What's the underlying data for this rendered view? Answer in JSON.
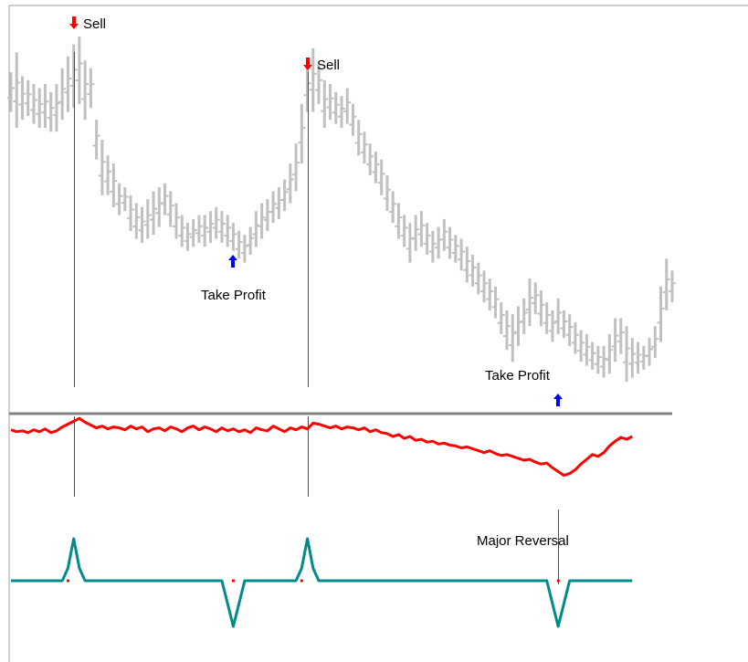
{
  "chart_data": [
    {
      "type": "ohlc",
      "panel": "price",
      "series_color": "#c0c0c0",
      "bars": [
        {
          "low": 68,
          "high": 78
        },
        {
          "low": 64,
          "high": 83
        },
        {
          "low": 66,
          "high": 77
        },
        {
          "low": 67,
          "high": 76
        },
        {
          "low": 65,
          "high": 75
        },
        {
          "low": 64,
          "high": 74
        },
        {
          "low": 64,
          "high": 75
        },
        {
          "low": 63,
          "high": 73
        },
        {
          "low": 63,
          "high": 75
        },
        {
          "low": 66,
          "high": 79
        },
        {
          "low": 68,
          "high": 82
        },
        {
          "low": 69,
          "high": 85
        },
        {
          "low": 70,
          "high": 87
        },
        {
          "low": 66,
          "high": 81
        },
        {
          "low": 69,
          "high": 79
        },
        {
          "low": 56,
          "high": 66
        },
        {
          "low": 47,
          "high": 61
        },
        {
          "low": 47,
          "high": 57
        },
        {
          "low": 44,
          "high": 55
        },
        {
          "low": 42,
          "high": 50
        },
        {
          "low": 43,
          "high": 49
        },
        {
          "low": 38,
          "high": 47
        },
        {
          "low": 36,
          "high": 45
        },
        {
          "low": 35,
          "high": 44
        },
        {
          "low": 36,
          "high": 46
        },
        {
          "low": 37,
          "high": 48
        },
        {
          "low": 39,
          "high": 49
        },
        {
          "low": 42,
          "high": 50
        },
        {
          "low": 39,
          "high": 48
        },
        {
          "low": 36,
          "high": 45
        },
        {
          "low": 34,
          "high": 42
        },
        {
          "low": 33,
          "high": 40
        },
        {
          "low": 34,
          "high": 41
        },
        {
          "low": 35,
          "high": 42
        },
        {
          "low": 34,
          "high": 42
        },
        {
          "low": 35,
          "high": 43
        },
        {
          "low": 36,
          "high": 44
        },
        {
          "low": 35,
          "high": 43
        },
        {
          "low": 34,
          "high": 42
        },
        {
          "low": 33,
          "high": 40
        },
        {
          "low": 31,
          "high": 38
        },
        {
          "low": 30,
          "high": 37
        },
        {
          "low": 32,
          "high": 39
        },
        {
          "low": 34,
          "high": 43
        },
        {
          "low": 36,
          "high": 45
        },
        {
          "low": 38,
          "high": 46
        },
        {
          "low": 40,
          "high": 48
        },
        {
          "low": 41,
          "high": 49
        },
        {
          "low": 43,
          "high": 51
        },
        {
          "low": 45,
          "high": 55
        },
        {
          "low": 48,
          "high": 60
        },
        {
          "low": 55,
          "high": 70
        },
        {
          "low": 68,
          "high": 80
        },
        {
          "low": 68,
          "high": 84
        },
        {
          "low": 70,
          "high": 80
        },
        {
          "low": 64,
          "high": 76
        },
        {
          "low": 66,
          "high": 75
        },
        {
          "low": 65,
          "high": 73
        },
        {
          "low": 64,
          "high": 72
        },
        {
          "low": 65,
          "high": 74
        },
        {
          "low": 62,
          "high": 70
        },
        {
          "low": 57,
          "high": 66
        },
        {
          "low": 55,
          "high": 63
        },
        {
          "low": 52,
          "high": 60
        },
        {
          "low": 50,
          "high": 58
        },
        {
          "low": 47,
          "high": 56
        },
        {
          "low": 43,
          "high": 52
        },
        {
          "low": 40,
          "high": 48
        },
        {
          "low": 36,
          "high": 45
        },
        {
          "low": 34,
          "high": 42
        },
        {
          "low": 30,
          "high": 40
        },
        {
          "low": 33,
          "high": 42
        },
        {
          "low": 34,
          "high": 43
        },
        {
          "low": 32,
          "high": 40
        },
        {
          "low": 30,
          "high": 38
        },
        {
          "low": 31,
          "high": 39
        },
        {
          "low": 33,
          "high": 41
        },
        {
          "low": 31,
          "high": 39
        },
        {
          "low": 30,
          "high": 37
        },
        {
          "low": 28,
          "high": 36
        },
        {
          "low": 25,
          "high": 34
        },
        {
          "low": 24,
          "high": 32
        },
        {
          "low": 22,
          "high": 30
        },
        {
          "low": 20,
          "high": 28
        },
        {
          "low": 18,
          "high": 26
        },
        {
          "low": 16,
          "high": 24
        },
        {
          "low": 12,
          "high": 20
        },
        {
          "low": 8,
          "high": 18
        },
        {
          "low": 5,
          "high": 17
        },
        {
          "low": 9,
          "high": 19
        },
        {
          "low": 12,
          "high": 21
        },
        {
          "low": 14,
          "high": 26
        },
        {
          "low": 17,
          "high": 25
        },
        {
          "low": 14,
          "high": 23
        },
        {
          "low": 12,
          "high": 20
        },
        {
          "low": 10,
          "high": 18
        },
        {
          "low": 12,
          "high": 21
        },
        {
          "low": 11,
          "high": 18
        },
        {
          "low": 9,
          "high": 17
        },
        {
          "low": 7,
          "high": 15
        },
        {
          "low": 5,
          "high": 13
        },
        {
          "low": 4,
          "high": 12
        },
        {
          "low": 3,
          "high": 10
        },
        {
          "low": 2,
          "high": 9
        },
        {
          "low": 1,
          "high": 9
        },
        {
          "low": 2,
          "high": 12
        },
        {
          "low": 5,
          "high": 16
        },
        {
          "low": 7,
          "high": 16
        },
        {
          "low": 0,
          "high": 14
        },
        {
          "low": 1,
          "high": 11
        },
        {
          "low": 2,
          "high": 10
        },
        {
          "low": 3,
          "high": 9
        },
        {
          "low": 4,
          "high": 11
        },
        {
          "low": 6,
          "high": 14
        },
        {
          "low": 10,
          "high": 24
        },
        {
          "low": 18,
          "high": 31
        },
        {
          "low": 20,
          "high": 28
        }
      ],
      "annotations": [
        {
          "label": "Sell",
          "bar": 11,
          "direction": "down",
          "color": "#ff0000"
        },
        {
          "label": "Sell",
          "bar": 52,
          "direction": "down",
          "color": "#ff0000"
        },
        {
          "label": "Take Profit",
          "bar": 39,
          "direction": "up",
          "color": "#0000ff"
        },
        {
          "label": "Take Profit",
          "bar": 96,
          "direction": "up",
          "color": "#0000ff"
        }
      ]
    },
    {
      "type": "line",
      "panel": "indicator",
      "series_color": "#ff0000",
      "ylim": [
        0,
        100
      ],
      "y": [
        82,
        80,
        81,
        79,
        82,
        80,
        83,
        79,
        81,
        85,
        88,
        91,
        94,
        90,
        87,
        84,
        86,
        83,
        85,
        84,
        82,
        86,
        83,
        85,
        80,
        83,
        84,
        81,
        85,
        83,
        80,
        84,
        86,
        82,
        85,
        83,
        80,
        84,
        81,
        83,
        80,
        82,
        79,
        84,
        82,
        81,
        86,
        83,
        80,
        84,
        82,
        85,
        83,
        89,
        88,
        86,
        84,
        86,
        83,
        85,
        84,
        82,
        84,
        80,
        82,
        79,
        78,
        75,
        77,
        73,
        75,
        71,
        72,
        69,
        70,
        67,
        68,
        66,
        65,
        63,
        64,
        62,
        60,
        58,
        60,
        57,
        55,
        56,
        54,
        52,
        50,
        51,
        48,
        46,
        47,
        42,
        38,
        34,
        36,
        40,
        46,
        51,
        56,
        54,
        58,
        65,
        70,
        74,
        72,
        75
      ],
      "vertical_markers_at_bars": [
        11,
        52,
        96
      ]
    },
    {
      "type": "line",
      "panel": "signal",
      "series_color": "#008b8b",
      "ylim": [
        -1,
        1
      ],
      "baseline": 0,
      "y": [
        0,
        0,
        0,
        0,
        0,
        0,
        0,
        0,
        0,
        0,
        0.3,
        1,
        0.3,
        0,
        0,
        0,
        0,
        0,
        0,
        0,
        0,
        0,
        0,
        0,
        0,
        0,
        0,
        0,
        0,
        0,
        0,
        0,
        0,
        0,
        0,
        0,
        0,
        0,
        -0.5,
        -1,
        -0.5,
        0,
        0,
        0,
        0,
        0,
        0,
        0,
        0,
        0,
        0,
        0.3,
        1,
        0.3,
        0,
        0,
        0,
        0,
        0,
        0,
        0,
        0,
        0,
        0,
        0,
        0,
        0,
        0,
        0,
        0,
        0,
        0,
        0,
        0,
        0,
        0,
        0,
        0,
        0,
        0,
        0,
        0,
        0,
        0,
        0,
        0,
        0,
        0,
        0,
        0,
        0,
        0,
        0,
        0,
        0,
        -0.5,
        -1,
        -0.5,
        0,
        0,
        0,
        0,
        0,
        0,
        0,
        0,
        0,
        0,
        0,
        0
      ],
      "event_dots_at_bars": [
        10,
        39,
        51,
        96
      ],
      "annotations": [
        {
          "label": "Major Reversal",
          "bar": 96,
          "color": "#ff0000"
        }
      ]
    }
  ]
}
